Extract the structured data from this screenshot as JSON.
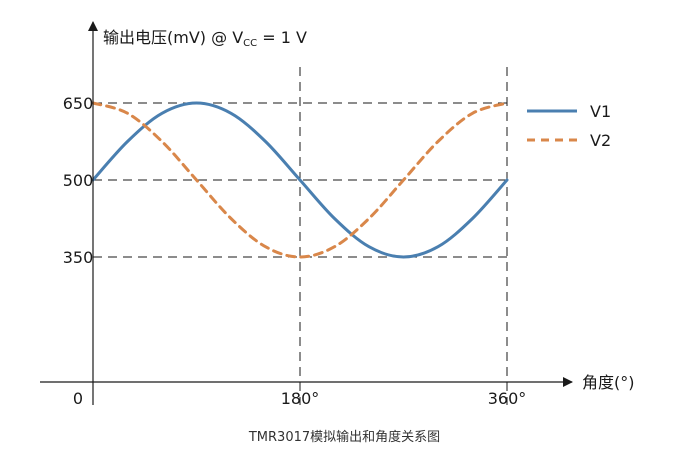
{
  "chart_data": {
    "type": "line",
    "title": "",
    "ylabel": {
      "main": "输出电压(mV) @ V",
      "sub": "CC",
      "tail": " = 1 V"
    },
    "xlabel": "角度(°)",
    "caption": "TMR3017模拟输出和角度关系图",
    "origin_label": "0",
    "xlim": [
      0,
      360
    ],
    "ylim": [
      0,
      650
    ],
    "x_ticks": [
      {
        "value": 180,
        "label": "180°"
      },
      {
        "value": 360,
        "label": "360°"
      }
    ],
    "y_ticks": [
      {
        "value": 350,
        "label": "350"
      },
      {
        "value": 500,
        "label": "500"
      },
      {
        "value": 650,
        "label": "650"
      }
    ],
    "series": [
      {
        "name": "V1",
        "color": "#4a7fb0",
        "style": "solid",
        "x": [
          0,
          30,
          60,
          90,
          120,
          150,
          180,
          210,
          240,
          270,
          300,
          330,
          360
        ],
        "y": [
          500,
          575,
          630,
          650,
          630,
          575,
          500,
          425,
          370,
          350,
          370,
          425,
          500
        ]
      },
      {
        "name": "V2",
        "color": "#d9874a",
        "style": "dashed",
        "x": [
          0,
          30,
          60,
          90,
          120,
          150,
          180,
          210,
          240,
          270,
          300,
          330,
          360
        ],
        "y": [
          650,
          630,
          575,
          500,
          425,
          370,
          350,
          370,
          425,
          500,
          575,
          630,
          650
        ]
      }
    ],
    "legend_position": "right",
    "grid": "dashed reference lines at 350, 500, 650 and 180°, 360°"
  }
}
